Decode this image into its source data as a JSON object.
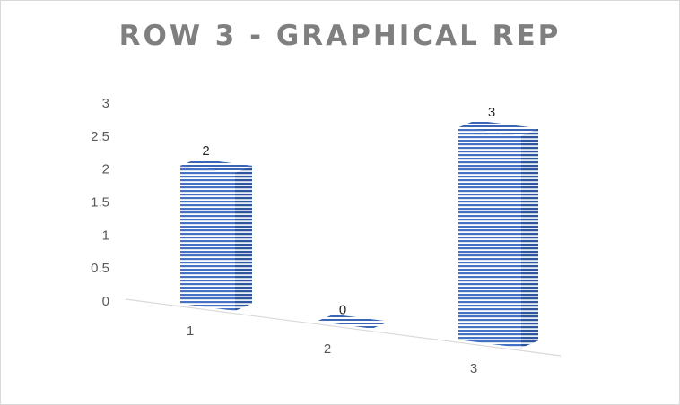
{
  "chart_data": {
    "type": "bar",
    "title": "ROW 3 - GRAPHICAL REP",
    "categories": [
      "1",
      "2",
      "3"
    ],
    "values": [
      2,
      0,
      3
    ],
    "data_labels": [
      "2",
      "0",
      "3"
    ],
    "y_ticks": [
      "0",
      "0.5",
      "1",
      "1.5",
      "2",
      "2.5",
      "3"
    ],
    "ylim": [
      0,
      3
    ],
    "grid": false,
    "legend": "none",
    "style": "3d-column",
    "bar_color": "#4472c4",
    "stripe_color": "#ffffff"
  }
}
